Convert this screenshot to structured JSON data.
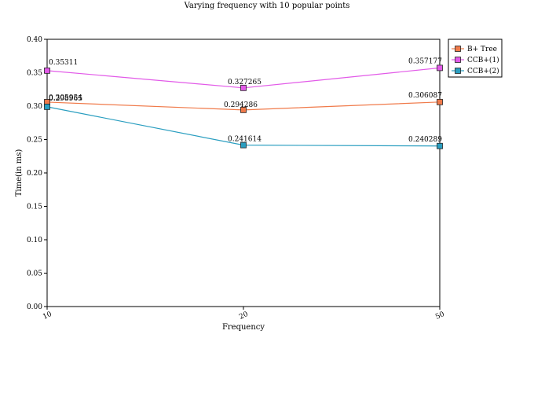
{
  "chart_data": {
    "type": "line",
    "title": "Varying frequency with 10 popular points",
    "xlabel": "Frequency",
    "ylabel": "Time(in ms)",
    "x": [
      "10",
      "20",
      "50"
    ],
    "ylim": [
      0,
      0.4
    ],
    "yticks": [
      "0.00",
      "0.05",
      "0.10",
      "0.15",
      "0.20",
      "0.25",
      "0.30",
      "0.35",
      "0.40"
    ],
    "grid": false,
    "legend_position": "top-right",
    "series": [
      {
        "name": "B+ Tree",
        "color": "#f07a4a",
        "values": [
          0.305954,
          0.294286,
          0.306087
        ],
        "labels": [
          "0.305954",
          "0.294286",
          "0.306087"
        ]
      },
      {
        "name": "CCB+(1)",
        "color": "#e25ae8",
        "values": [
          0.35311,
          0.327265,
          0.357177
        ],
        "labels": [
          "0.35311",
          "0.327265",
          "0.357177"
        ]
      },
      {
        "name": "CCB+(2)",
        "color": "#2a9ec0",
        "values": [
          0.298965,
          0.241614,
          0.240289
        ],
        "labels": [
          "0.298965",
          "0.241614",
          "0.240289"
        ]
      }
    ]
  }
}
